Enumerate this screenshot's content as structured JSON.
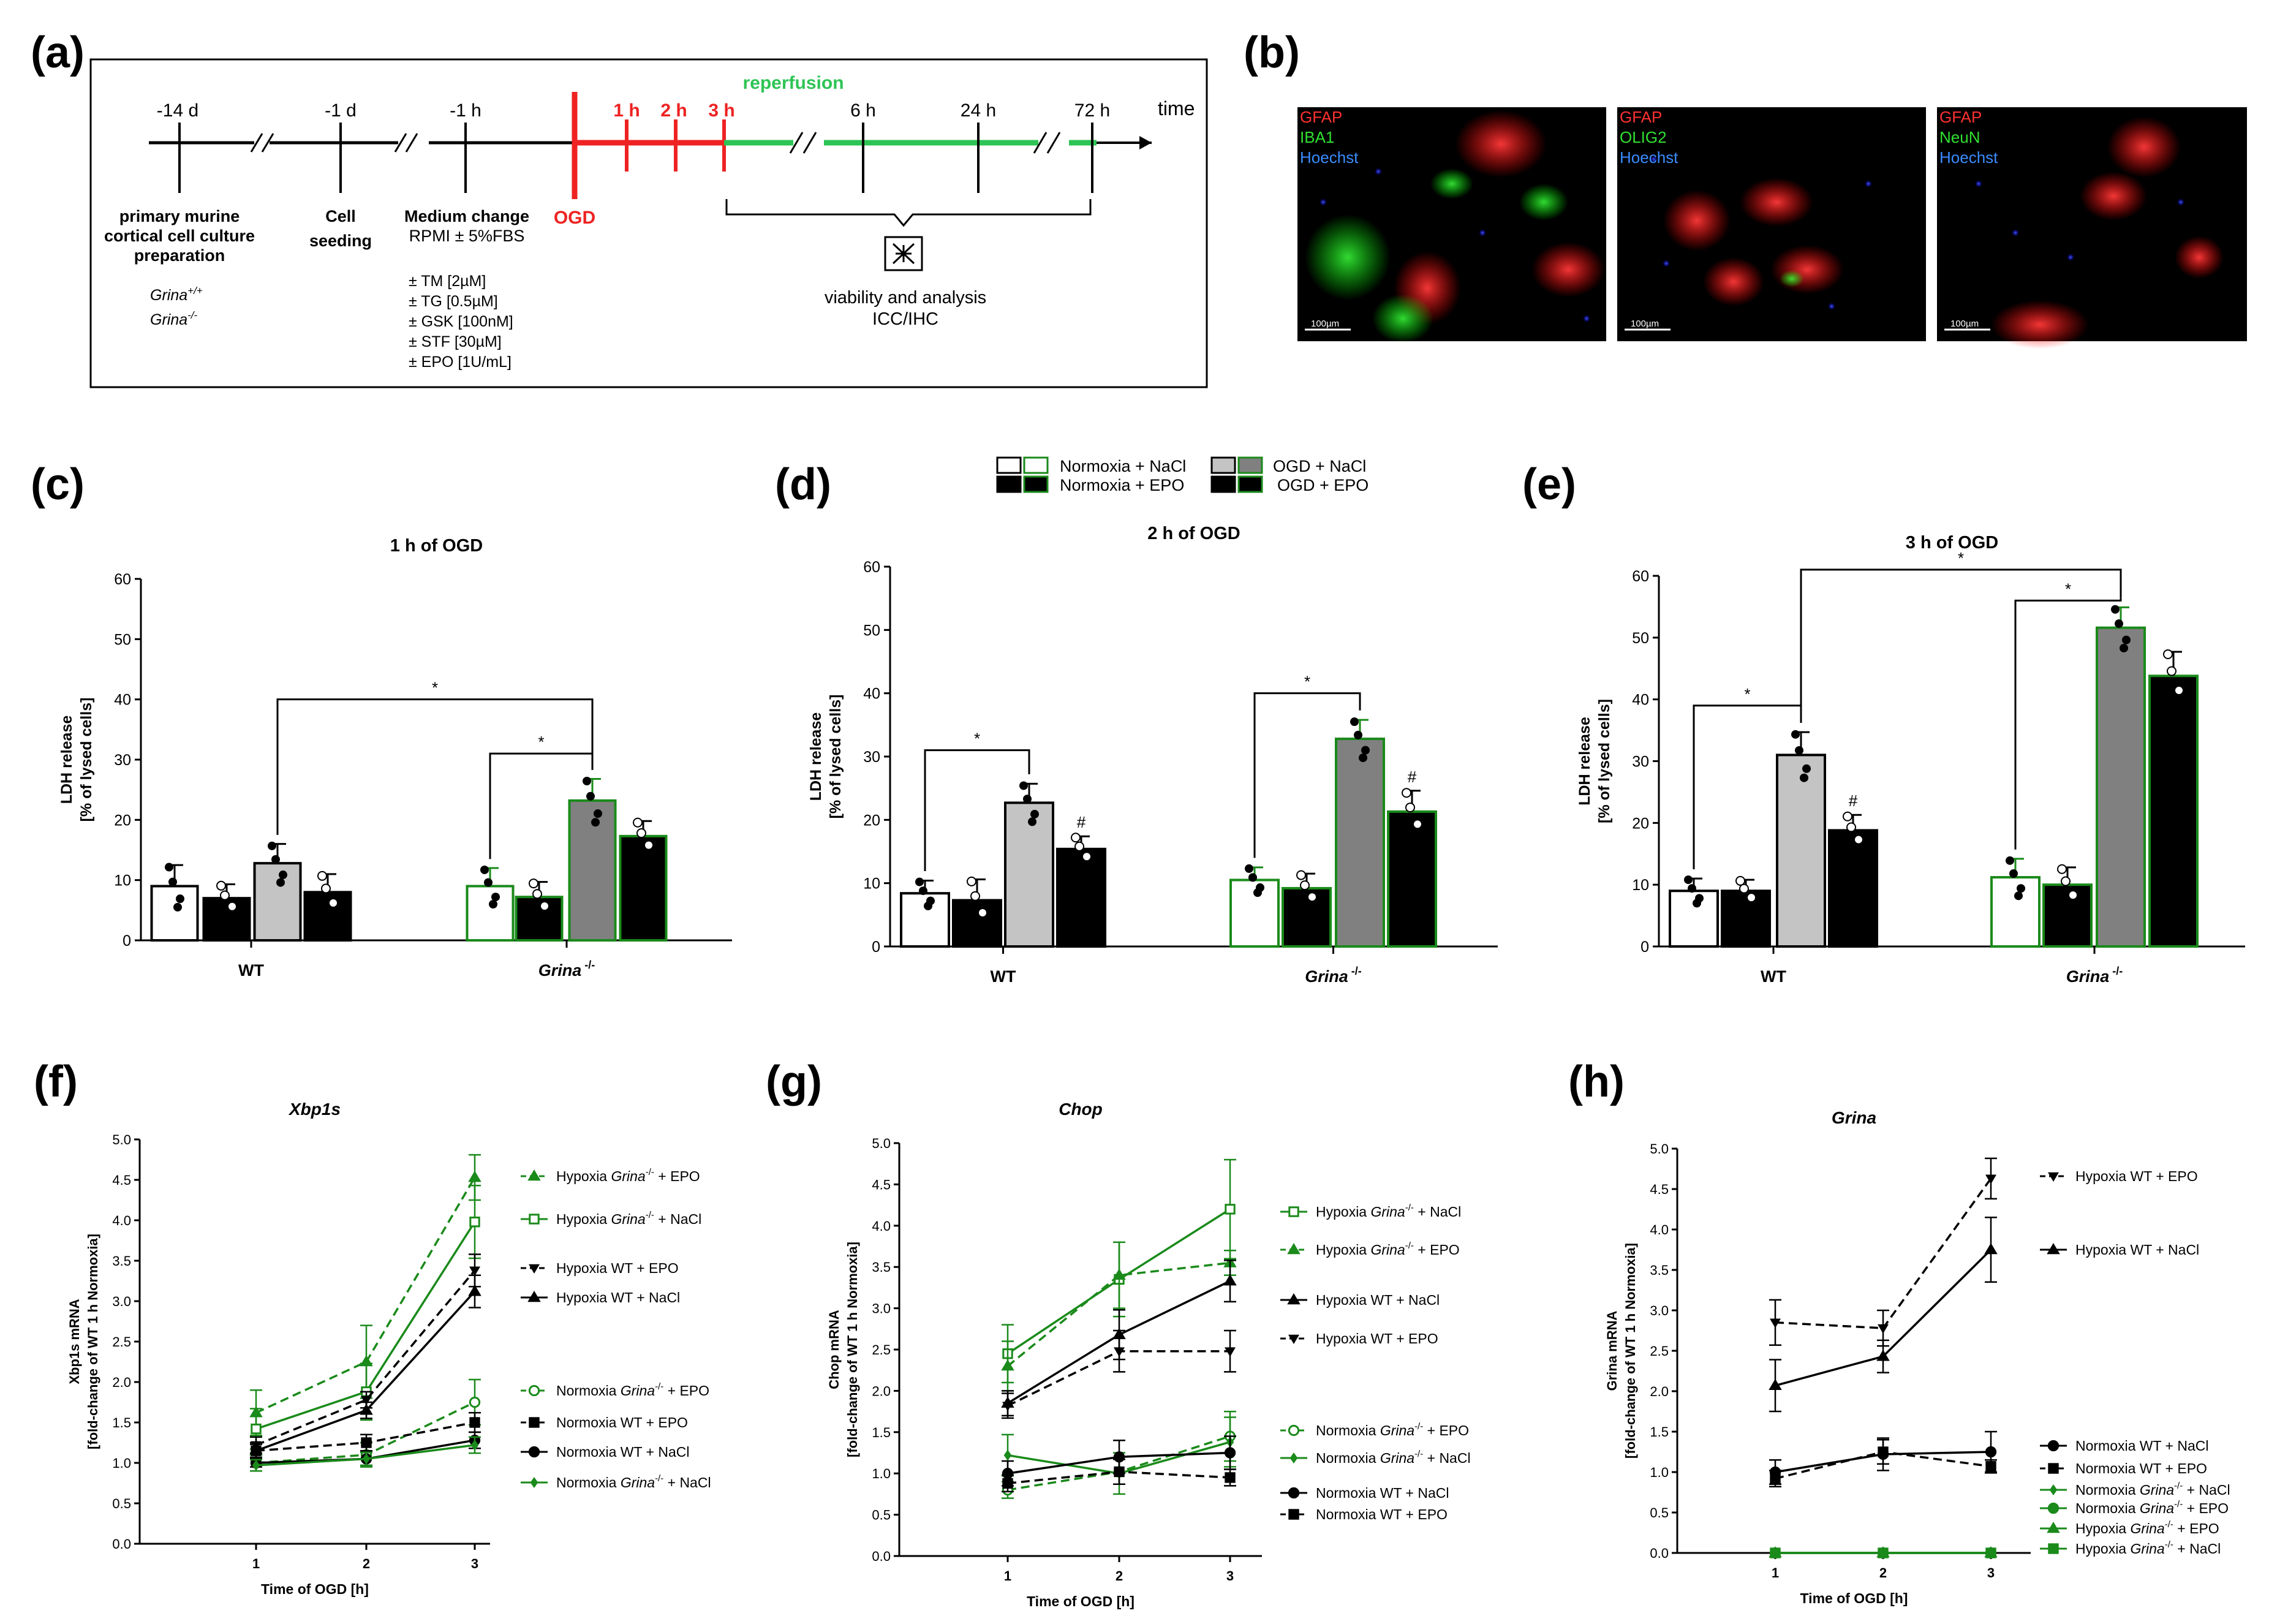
{
  "panel_labels": {
    "a": "(a)",
    "b": "(b)",
    "c": "(c)",
    "d": "(d)",
    "e": "(e)",
    "f": "(f)",
    "g": "(g)",
    "h": "(h)"
  },
  "timeline": {
    "times": [
      "-14 d",
      "-1 d",
      "-1 h",
      "1 h",
      "2 h",
      "3 h",
      "6 h",
      "24 h",
      "72 h"
    ],
    "time_label": "time",
    "reperfusion": "reperfusion",
    "ogd": "OGD",
    "step1": [
      "primary murine",
      "cortical cell culture",
      "preparation"
    ],
    "step2": [
      "Cell",
      "seeding"
    ],
    "step3_title": "Medium change",
    "step3_sub": "RPMI ± 5%FBS",
    "genotypes": [
      {
        "base": "Grina",
        "sup": "+/+"
      },
      {
        "base": "Grina",
        "sup": "-/-"
      }
    ],
    "treatments": [
      "± TM [2µM]",
      "± TG [0.5µM]",
      "± GSK [100nM]",
      "± STF [30µM]",
      "± EPO [1U/mL]"
    ],
    "analysis": [
      "viability and analysis",
      "ICC/IHC"
    ]
  },
  "micrographs": [
    {
      "lines": [
        {
          "text": "GFAP",
          "color": "#ff3030"
        },
        {
          "text": "IBA1",
          "color": "#30e030"
        },
        {
          "text": "Hoechst",
          "color": "#3a8cff"
        }
      ],
      "scale": "100µm"
    },
    {
      "lines": [
        {
          "text": "GFAP",
          "color": "#ff3030"
        },
        {
          "text": "OLIG2",
          "color": "#30e030"
        },
        {
          "text": "Hoechst",
          "color": "#3a8cff"
        }
      ],
      "scale": "100µm"
    },
    {
      "lines": [
        {
          "text": "GFAP",
          "color": "#ff3030"
        },
        {
          "text": "NeuN",
          "color": "#30e030"
        },
        {
          "text": "Hoechst",
          "color": "#3a8cff"
        }
      ],
      "scale": "100µm"
    }
  ],
  "legend_bars": [
    {
      "label": "Normoxia + NaCl"
    },
    {
      "label": "Normoxia + EPO"
    },
    {
      "label": "OGD + NaCl"
    },
    {
      "label": "OGD + EPO"
    }
  ],
  "colors": {
    "green": "#1a8a1a",
    "grayLight": "#c4c4c4",
    "grayDark": "#808080",
    "red": "#ee2222",
    "timelineGreen": "#2ec455"
  },
  "chart_data": [
    {
      "id": "c",
      "type": "bar",
      "title": "1 h of OGD",
      "ylabel": [
        "LDH release",
        "[% of lysed cells]"
      ],
      "ylim": [
        0,
        60
      ],
      "yticks": [
        0,
        10,
        20,
        30,
        40,
        50,
        60
      ],
      "categories": [
        {
          "text": "WT"
        },
        {
          "text": "Grina",
          "sup": " -/-",
          "italic": true
        }
      ],
      "series": [
        {
          "name": "Normoxia + NaCl",
          "values": [
            9.0,
            9.0
          ],
          "errors": [
            3.5,
            3.0
          ]
        },
        {
          "name": "Normoxia + EPO",
          "values": [
            7.0,
            7.2
          ],
          "errors": [
            2.3,
            2.5
          ]
        },
        {
          "name": "OGD + NaCl",
          "values": [
            12.8,
            23.2
          ],
          "errors": [
            3.2,
            3.6
          ]
        },
        {
          "name": "OGD + EPO",
          "values": [
            8.0,
            17.3
          ],
          "errors": [
            3.0,
            2.5
          ]
        }
      ],
      "dots": [
        [
          [
            13,
            11,
            6,
            6
          ],
          [
            8,
            4,
            7.5
          ]
        ],
        [
          [
            12,
            9,
            5,
            7
          ],
          [
            9,
            7,
            6
          ]
        ]
      ],
      "dotsB": [
        [
          [
            13,
            14,
            9,
            10
          ],
          [
            11,
            8
          ]
        ],
        [
          [
            25,
            26,
            21,
            19
          ],
          [
            19,
            16
          ]
        ]
      ],
      "brackets": [
        {
          "from": [
            0,
            2
          ],
          "to": [
            1,
            2
          ],
          "y": 40,
          "mark": "*"
        },
        {
          "from": [
            1,
            0
          ],
          "to": [
            1,
            2
          ],
          "y": 31,
          "mark": "*"
        }
      ],
      "marks": []
    },
    {
      "id": "d",
      "type": "bar",
      "title": "2 h of OGD",
      "ylabel": [
        "LDH release",
        "[% of lysed cells]"
      ],
      "ylim": [
        0,
        60
      ],
      "yticks": [
        0,
        10,
        20,
        30,
        40,
        50,
        60
      ],
      "categories": [
        {
          "text": "WT"
        },
        {
          "text": "Grina",
          "sup": " -/-",
          "italic": true
        }
      ],
      "series": [
        {
          "name": "Normoxia + NaCl",
          "values": [
            8.4,
            10.5
          ],
          "errors": [
            2.0,
            2.0
          ]
        },
        {
          "name": "Normoxia + EPO",
          "values": [
            7.3,
            9.2
          ],
          "errors": [
            3.3,
            2.3
          ]
        },
        {
          "name": "OGD + NaCl",
          "values": [
            22.7,
            32.8
          ],
          "errors": [
            3.0,
            3.0
          ]
        },
        {
          "name": "OGD + EPO",
          "values": [
            15.4,
            21.3
          ],
          "errors": [
            2.0,
            3.3
          ]
        }
      ],
      "brackets": [
        {
          "from": [
            0,
            0
          ],
          "to": [
            0,
            2
          ],
          "y": 31,
          "mark": "*"
        },
        {
          "from": [
            1,
            0
          ],
          "to": [
            1,
            2
          ],
          "y": 40,
          "mark": "*"
        }
      ],
      "marks": [
        {
          "group": 0,
          "series": 3,
          "text": "#"
        },
        {
          "group": 1,
          "series": 3,
          "text": "#"
        }
      ]
    },
    {
      "id": "e",
      "type": "bar",
      "title": "3 h of OGD",
      "ylabel": [
        "LDH release",
        "[% of lysed cells]"
      ],
      "ylim": [
        0,
        60
      ],
      "yticks": [
        0,
        10,
        20,
        30,
        40,
        50,
        60
      ],
      "categories": [
        {
          "text": "WT"
        },
        {
          "text": "Grina",
          "sup": " -/-",
          "italic": true
        }
      ],
      "series": [
        {
          "name": "Normoxia + NaCl",
          "values": [
            9.0,
            11.2
          ],
          "errors": [
            2.0,
            3.0
          ]
        },
        {
          "name": "Normoxia + EPO",
          "values": [
            9.0,
            10.0
          ],
          "errors": [
            1.8,
            2.8
          ]
        },
        {
          "name": "OGD + NaCl",
          "values": [
            31.0,
            51.6
          ],
          "errors": [
            3.7,
            3.3
          ]
        },
        {
          "name": "OGD + EPO",
          "values": [
            18.8,
            43.8
          ],
          "errors": [
            2.5,
            3.9
          ]
        }
      ],
      "brackets": [
        {
          "from": [
            0,
            0
          ],
          "to": [
            0,
            2
          ],
          "y": 39,
          "mark": "*"
        },
        {
          "from": [
            0,
            2
          ],
          "to": [
            1,
            2
          ],
          "y": 61,
          "mark": "*"
        },
        {
          "from": [
            1,
            0
          ],
          "to": [
            1,
            2
          ],
          "y": 56,
          "mark": "*"
        }
      ],
      "marks": [
        {
          "group": 0,
          "series": 3,
          "text": "#"
        }
      ]
    },
    {
      "id": "f",
      "type": "line",
      "title": "Xbp1s",
      "ylabel": [
        "Xbp1s mRNA",
        "[fold-change of WT 1 h Normoxia]"
      ],
      "ylabel_italic": "Xbp1s",
      "xlabel": "Time of OGD [h]",
      "x": [
        1,
        2,
        3
      ],
      "ylim": [
        0,
        5
      ],
      "yticks": [
        0,
        0.5,
        1.0,
        1.5,
        2.0,
        2.5,
        3.0,
        3.5,
        4.0,
        4.5,
        5.0
      ],
      "series": [
        {
          "name": "Hypoxia Grina-/- + EPO",
          "values": [
            1.62,
            2.25,
            4.53
          ],
          "errors": [
            0.28,
            0.45,
            0.28
          ],
          "color": "#1a8a1a",
          "dash": true,
          "marker": "tri"
        },
        {
          "name": "Hypoxia Grina-/- + NaCl",
          "values": [
            1.42,
            1.88,
            3.98
          ],
          "errors": [
            0.25,
            0.35,
            0.45
          ],
          "color": "#1a8a1a",
          "dash": false,
          "marker": "sqo"
        },
        {
          "name": "Hypoxia WT + EPO",
          "values": [
            1.22,
            1.78,
            3.38
          ],
          "errors": [
            0.1,
            0.1,
            0.2
          ],
          "color": "#000",
          "dash": true,
          "marker": "tridown"
        },
        {
          "name": "Hypoxia WT + NaCl",
          "values": [
            1.15,
            1.65,
            3.12
          ],
          "errors": [
            0.1,
            0.1,
            0.2
          ],
          "color": "#000",
          "dash": false,
          "marker": "tri"
        },
        {
          "name": "Normoxia Grina-/- + EPO",
          "values": [
            1.0,
            1.1,
            1.75
          ],
          "errors": [
            0.1,
            0.15,
            0.28
          ],
          "color": "#1a8a1a",
          "dash": true,
          "marker": "circo"
        },
        {
          "name": "Normoxia WT + EPO",
          "values": [
            1.15,
            1.25,
            1.5
          ],
          "errors": [
            0.08,
            0.1,
            0.12
          ],
          "color": "#000",
          "dash": true,
          "marker": "sq"
        },
        {
          "name": "Normoxia WT + NaCl",
          "values": [
            1.0,
            1.05,
            1.28
          ],
          "errors": [
            0.05,
            0.08,
            0.1
          ],
          "color": "#000",
          "dash": false,
          "marker": "circ"
        },
        {
          "name": "Normoxia Grina-/- + NaCl",
          "values": [
            0.97,
            1.05,
            1.22
          ],
          "errors": [
            0.07,
            0.08,
            0.1
          ],
          "color": "#1a8a1a",
          "dash": false,
          "marker": "dia"
        }
      ],
      "legend": [
        {
          "pre": "Hypoxia ",
          "it": "Grina",
          "sup": "-/-",
          "post": " + EPO"
        },
        {
          "pre": "Hypoxia ",
          "it": "Grina",
          "sup": "-/-",
          "post": " + NaCl"
        },
        {
          "pre": "Hypoxia WT + EPO"
        },
        {
          "pre": "Hypoxia WT + NaCl"
        },
        {
          "pre": "Normoxia ",
          "it": "Grina",
          "sup": "-/-",
          "post": " + EPO"
        },
        {
          "pre": "Normoxia WT + EPO"
        },
        {
          "pre": "Normoxia WT + NaCl"
        },
        {
          "pre": "Normoxia ",
          "it": "Grina",
          "sup": "-/-",
          "post": " + NaCl"
        }
      ]
    },
    {
      "id": "g",
      "type": "line",
      "title": "Chop",
      "ylabel": [
        "Chop mRNA",
        "[fold-change of WT 1 h Normoxia]"
      ],
      "ylabel_italic": "Chop",
      "xlabel": "Time of OGD [h]",
      "x": [
        1,
        2,
        3
      ],
      "ylim": [
        0,
        5
      ],
      "yticks": [
        0,
        0.5,
        1.0,
        1.5,
        2.0,
        2.5,
        3.0,
        3.5,
        4.0,
        4.5,
        5.0
      ],
      "series": [
        {
          "name": "Hypoxia Grina-/- + NaCl",
          "values": [
            2.45,
            3.35,
            4.2
          ],
          "errors": [
            0.35,
            0.45,
            0.6
          ],
          "color": "#1a8a1a",
          "dash": false,
          "marker": "sqo"
        },
        {
          "name": "Hypoxia Grina-/- + EPO",
          "values": [
            2.3,
            3.4,
            3.55
          ],
          "errors": [
            0.3,
            0.4,
            0.15
          ],
          "color": "#1a8a1a",
          "dash": true,
          "marker": "tri"
        },
        {
          "name": "Hypoxia WT + NaCl",
          "values": [
            1.85,
            2.68,
            3.33
          ],
          "errors": [
            0.15,
            0.3,
            0.25
          ],
          "color": "#000",
          "dash": false,
          "marker": "tri"
        },
        {
          "name": "Hypoxia WT + EPO",
          "values": [
            1.82,
            2.48,
            2.48
          ],
          "errors": [
            0.15,
            0.25,
            0.25
          ],
          "color": "#000",
          "dash": true,
          "marker": "tridown"
        },
        {
          "name": "Normoxia Grina-/- + EPO",
          "values": [
            0.8,
            1.02,
            1.45
          ],
          "errors": [
            0.1,
            0.15,
            0.3
          ],
          "color": "#1a8a1a",
          "dash": true,
          "marker": "circo"
        },
        {
          "name": "Normoxia Grina-/- + NaCl",
          "values": [
            1.22,
            1.0,
            1.38
          ],
          "errors": [
            0.25,
            0.25,
            0.3
          ],
          "color": "#1a8a1a",
          "dash": false,
          "marker": "dia"
        },
        {
          "name": "Normoxia WT + NaCl",
          "values": [
            1.0,
            1.2,
            1.25
          ],
          "errors": [
            0.15,
            0.2,
            0.2
          ],
          "color": "#000",
          "dash": false,
          "marker": "circ"
        },
        {
          "name": "Normoxia WT + EPO",
          "values": [
            0.88,
            1.02,
            0.95
          ],
          "errors": [
            0.1,
            0.15,
            0.1
          ],
          "color": "#000",
          "dash": true,
          "marker": "sq"
        }
      ],
      "legend": [
        {
          "pre": "Hypoxia ",
          "it": "Grina",
          "sup": "-/-",
          "post": " + NaCl"
        },
        {
          "pre": "Hypoxia ",
          "it": "Grina",
          "sup": "-/-",
          "post": " + EPO"
        },
        {
          "pre": "Hypoxia WT +  NaCl"
        },
        {
          "pre": "Hypoxia WT + EPO"
        },
        {
          "pre": "Normoxia ",
          "it": "Grina",
          "sup": "-/-",
          "post": " + EPO"
        },
        {
          "pre": "Normoxia ",
          "it": "Grina",
          "sup": "-/-",
          "post": " + NaCl"
        },
        {
          "pre": "Normoxia WT + NaCl"
        },
        {
          "pre": "Normoxia WT + EPO"
        }
      ]
    },
    {
      "id": "h",
      "type": "line",
      "title": "Grina",
      "ylabel": [
        "Grina mRNA",
        "[fold-change of WT 1 h Normoxia]"
      ],
      "ylabel_italic": "Grina",
      "xlabel": "Time of OGD [h]",
      "x": [
        1,
        2,
        3
      ],
      "ylim": [
        0,
        5
      ],
      "yticks": [
        0,
        0.5,
        1.0,
        1.5,
        2.0,
        2.5,
        3.0,
        3.5,
        4.0,
        4.5,
        5.0
      ],
      "series": [
        {
          "name": "Hypoxia WT + EPO",
          "values": [
            2.85,
            2.78,
            4.63
          ],
          "errors": [
            0.28,
            0.22,
            0.25
          ],
          "color": "#000",
          "dash": true,
          "marker": "tridown"
        },
        {
          "name": "Hypoxia WT + NaCl",
          "values": [
            2.07,
            2.43,
            3.75
          ],
          "errors": [
            0.32,
            0.2,
            0.4
          ],
          "color": "#000",
          "dash": false,
          "marker": "tri"
        },
        {
          "name": "Normoxia WT + NaCl",
          "values": [
            1.0,
            1.22,
            1.25
          ],
          "errors": [
            0.15,
            0.2,
            0.25
          ],
          "color": "#000",
          "dash": false,
          "marker": "circ"
        },
        {
          "name": "Normoxia WT + EPO",
          "values": [
            0.92,
            1.25,
            1.07
          ],
          "errors": [
            0.1,
            0.15,
            0.08
          ],
          "color": "#000",
          "dash": true,
          "marker": "sq"
        },
        {
          "name": "Normoxia Grina-/- + NaCl",
          "values": [
            0,
            0,
            0
          ],
          "errors": [
            0,
            0,
            0
          ],
          "color": "#1a8a1a",
          "dash": false,
          "marker": "dia"
        },
        {
          "name": "Normoxia Grina-/- + EPO",
          "values": [
            0,
            0,
            0
          ],
          "errors": [
            0,
            0,
            0
          ],
          "color": "#1a8a1a",
          "dash": false,
          "marker": "circ"
        },
        {
          "name": "Hypoxia Grina-/- + EPO",
          "values": [
            0,
            0,
            0
          ],
          "errors": [
            0,
            0,
            0
          ],
          "color": "#1a8a1a",
          "dash": false,
          "marker": "tri"
        },
        {
          "name": "Hypoxia Grina-/- + NaCl",
          "values": [
            0,
            0,
            0
          ],
          "errors": [
            0,
            0,
            0
          ],
          "color": "#1a8a1a",
          "dash": false,
          "marker": "sq"
        }
      ],
      "legend": [
        {
          "pre": "Hypoxia WT + EPO"
        },
        {
          "pre": "Hypoxia WT + NaCl"
        },
        {
          "pre": "Normoxia WT + NaCl"
        },
        {
          "pre": "Normoxia WT + EPO"
        },
        {
          "pre": "Normoxia ",
          "it": "Grina",
          "sup": "-/-",
          "post": " + NaCl"
        },
        {
          "pre": "Normoxia ",
          "it": "Grina",
          "sup": "-/-",
          "post": " + EPO"
        },
        {
          "pre": "Hypoxia ",
          "it": "Grina",
          "sup": "-/-",
          "post": " + EPO"
        },
        {
          "pre": "Hypoxia ",
          "it": "Grina",
          "sup": "-/-",
          "post": " + NaCl"
        }
      ]
    }
  ]
}
